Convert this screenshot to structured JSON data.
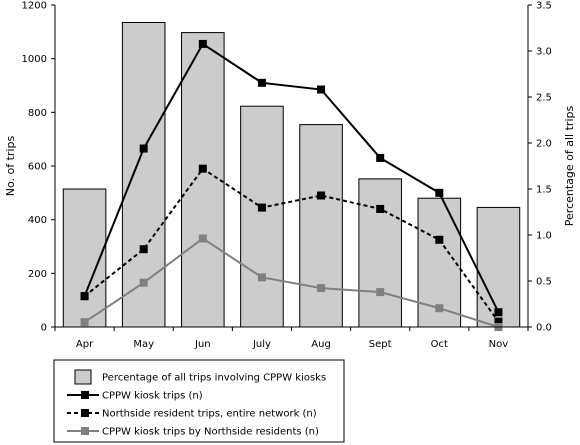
{
  "chart_data": {
    "type": "bar+line",
    "categories": [
      "Apr",
      "May",
      "Jun",
      "July",
      "Aug",
      "Sept",
      "Oct",
      "Nov"
    ],
    "left_axis": {
      "label": "No. of trips",
      "ylim": [
        0,
        1200
      ],
      "ticks": [
        "0",
        "200",
        "400",
        "600",
        "800",
        "1000",
        "1200"
      ]
    },
    "right_axis": {
      "label": "Percentage of all trips",
      "ylim": [
        0,
        3.5
      ],
      "ticks": [
        "0.0",
        "0.5",
        "1.0",
        "1.5",
        "2.0",
        "2.5",
        "3.0",
        "3.5"
      ]
    },
    "bars": {
      "name": "Percentage of all trips involving CPPW kiosks",
      "axis": "right",
      "color": "#cccccc",
      "values": [
        1.5,
        3.31,
        3.2,
        2.4,
        2.2,
        1.61,
        1.4,
        1.3
      ]
    },
    "series": [
      {
        "name": "CPPW kiosk trips (n)",
        "axis": "left",
        "color": "#000000",
        "dash": "solid",
        "values": [
          115,
          665,
          1055,
          910,
          885,
          630,
          500,
          55
        ]
      },
      {
        "name": "Northside resident trips, entire network (n)",
        "axis": "left",
        "color": "#000000",
        "dash": "dashed",
        "values": [
          115,
          290,
          590,
          445,
          490,
          440,
          325,
          20
        ]
      },
      {
        "name": "CPPW kiosk trips by Northside residents (n)",
        "axis": "left",
        "color": "#808080",
        "dash": "solid",
        "values": [
          18,
          165,
          330,
          185,
          145,
          130,
          70,
          0
        ]
      }
    ],
    "grid": false,
    "legend_position": "bottom-left"
  }
}
